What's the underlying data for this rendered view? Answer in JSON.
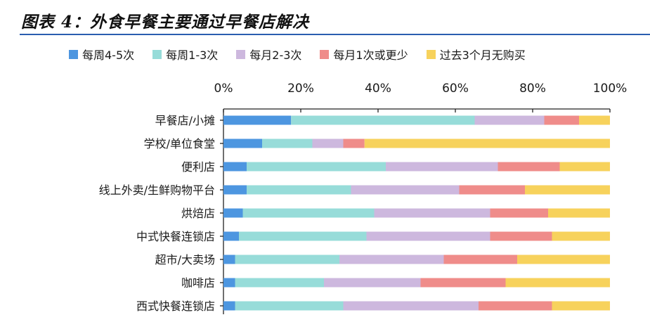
{
  "title": "图表 4：外食早餐主要通过早餐店解决",
  "chart_data": {
    "type": "bar",
    "orientation": "horizontal-stacked-percent",
    "categories": [
      "早餐店/小摊",
      "学校/单位食堂",
      "便利店",
      "线上外卖/生鲜购物平台",
      "烘焙店",
      "中式快餐连锁店",
      "超市/大卖场",
      "咖啡店",
      "西式快餐连锁店"
    ],
    "xlim": [
      0,
      100
    ],
    "xticks": [
      "0%",
      "20%",
      "40%",
      "60%",
      "80%",
      "100%"
    ],
    "legend_position": "top",
    "grid": false,
    "series": [
      {
        "name": "每周4-5次",
        "color": "#4d96e0",
        "values": [
          17.5,
          10,
          6,
          6,
          5,
          4,
          3,
          3,
          3
        ]
      },
      {
        "name": "每周1-3次",
        "color": "#97dcd9",
        "values": [
          47.5,
          13,
          36,
          27,
          34,
          33,
          27,
          23,
          28
        ]
      },
      {
        "name": "每月2-3次",
        "color": "#cdb8de",
        "values": [
          18,
          8,
          29,
          28,
          30,
          32,
          27,
          25,
          35
        ]
      },
      {
        "name": "每月1次或更少",
        "color": "#ef8c8a",
        "values": [
          9,
          5.5,
          16,
          17,
          15,
          16,
          19,
          22,
          19
        ]
      },
      {
        "name": "过去3个月无购买",
        "color": "#f7d25c",
        "values": [
          8,
          63.5,
          13,
          22,
          16,
          15,
          24,
          27,
          15
        ]
      }
    ]
  }
}
